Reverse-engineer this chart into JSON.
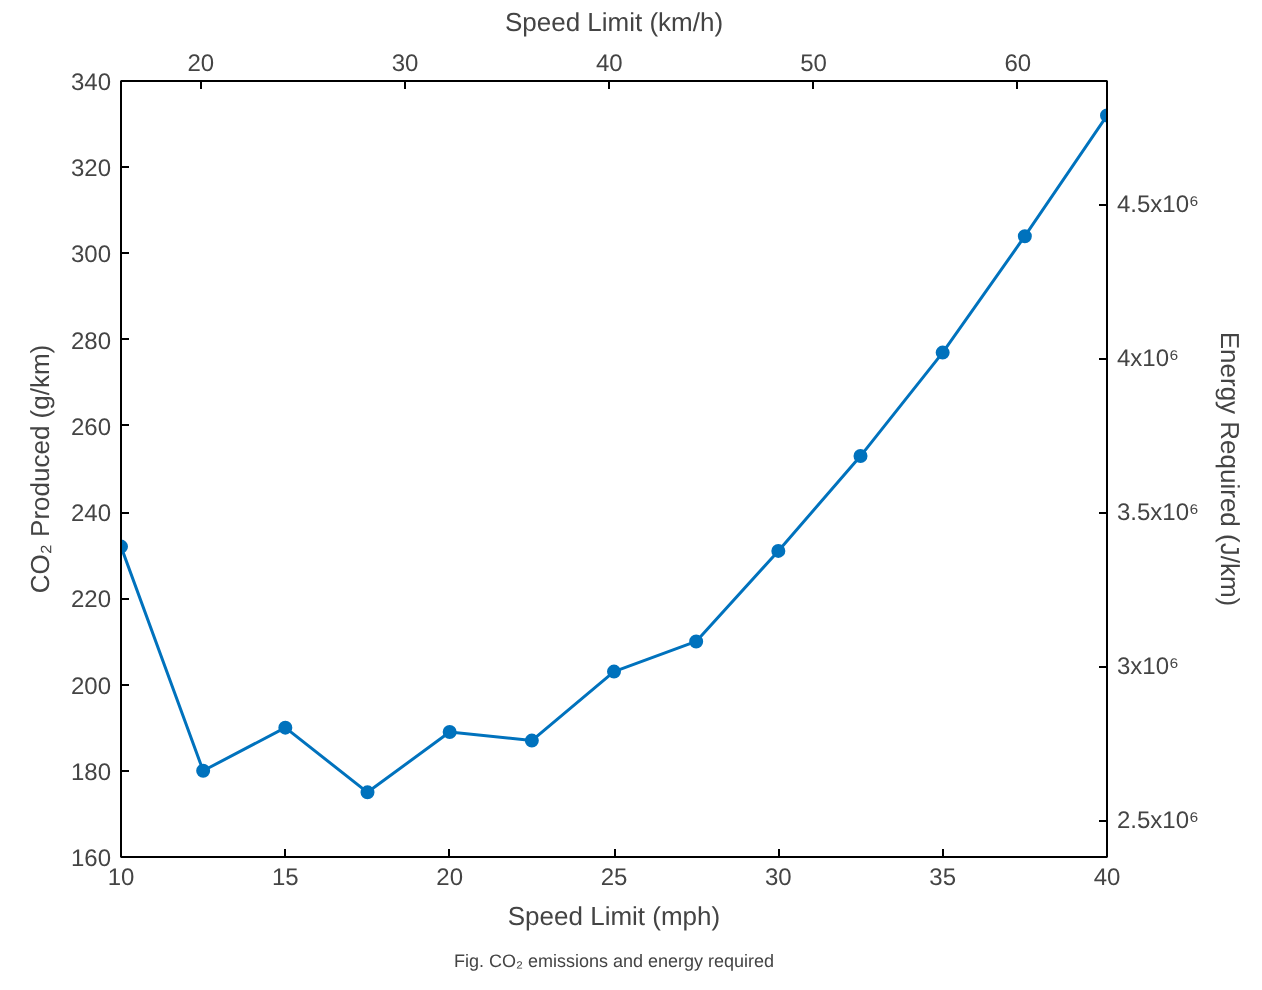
{
  "chart_data": {
    "type": "line",
    "xlabel": "Speed Limit (mph)",
    "ylabel": "CO₂ Produced (g/km)",
    "y2label": "Energy Required (J/km)",
    "x2label": "Speed Limit (km/h)",
    "annotations": [
      "Fig. CO₂ emissions and energy required"
    ],
    "x": [
      10,
      12.5,
      15,
      17.5,
      20,
      22.5,
      25,
      27.5,
      30,
      32.5,
      35,
      37.5,
      40
    ],
    "series": [
      {
        "color": "#0072bd",
        "values": [
          232,
          180,
          190,
          175,
          189,
          187,
          203,
          210,
          231,
          253,
          277,
          304,
          332
        ]
      }
    ],
    "xlim": [
      10,
      40
    ],
    "xticks": [
      10,
      15,
      20,
      25,
      30,
      35,
      40
    ],
    "ylim": [
      160,
      340
    ],
    "yticks": [
      160,
      180,
      200,
      220,
      240,
      260,
      280,
      300,
      320,
      340
    ],
    "y2lim": [
      2380000,
      4900000
    ],
    "y2ticks": [
      {
        "value": 2500000,
        "label": "2.5x10⁶"
      },
      {
        "value": 3000000,
        "label": "3x10⁶"
      },
      {
        "value": 3500000,
        "label": "3.5x10⁶"
      },
      {
        "value": 4000000,
        "label": "4x10⁶"
      },
      {
        "value": 4500000,
        "label": "4.5x10⁶"
      }
    ],
    "x2lim": [
      16.09,
      64.37
    ],
    "x2ticks": [
      20,
      30,
      40,
      50,
      60
    ],
    "marker": "circle",
    "line_style": "solid",
    "grid": false
  }
}
